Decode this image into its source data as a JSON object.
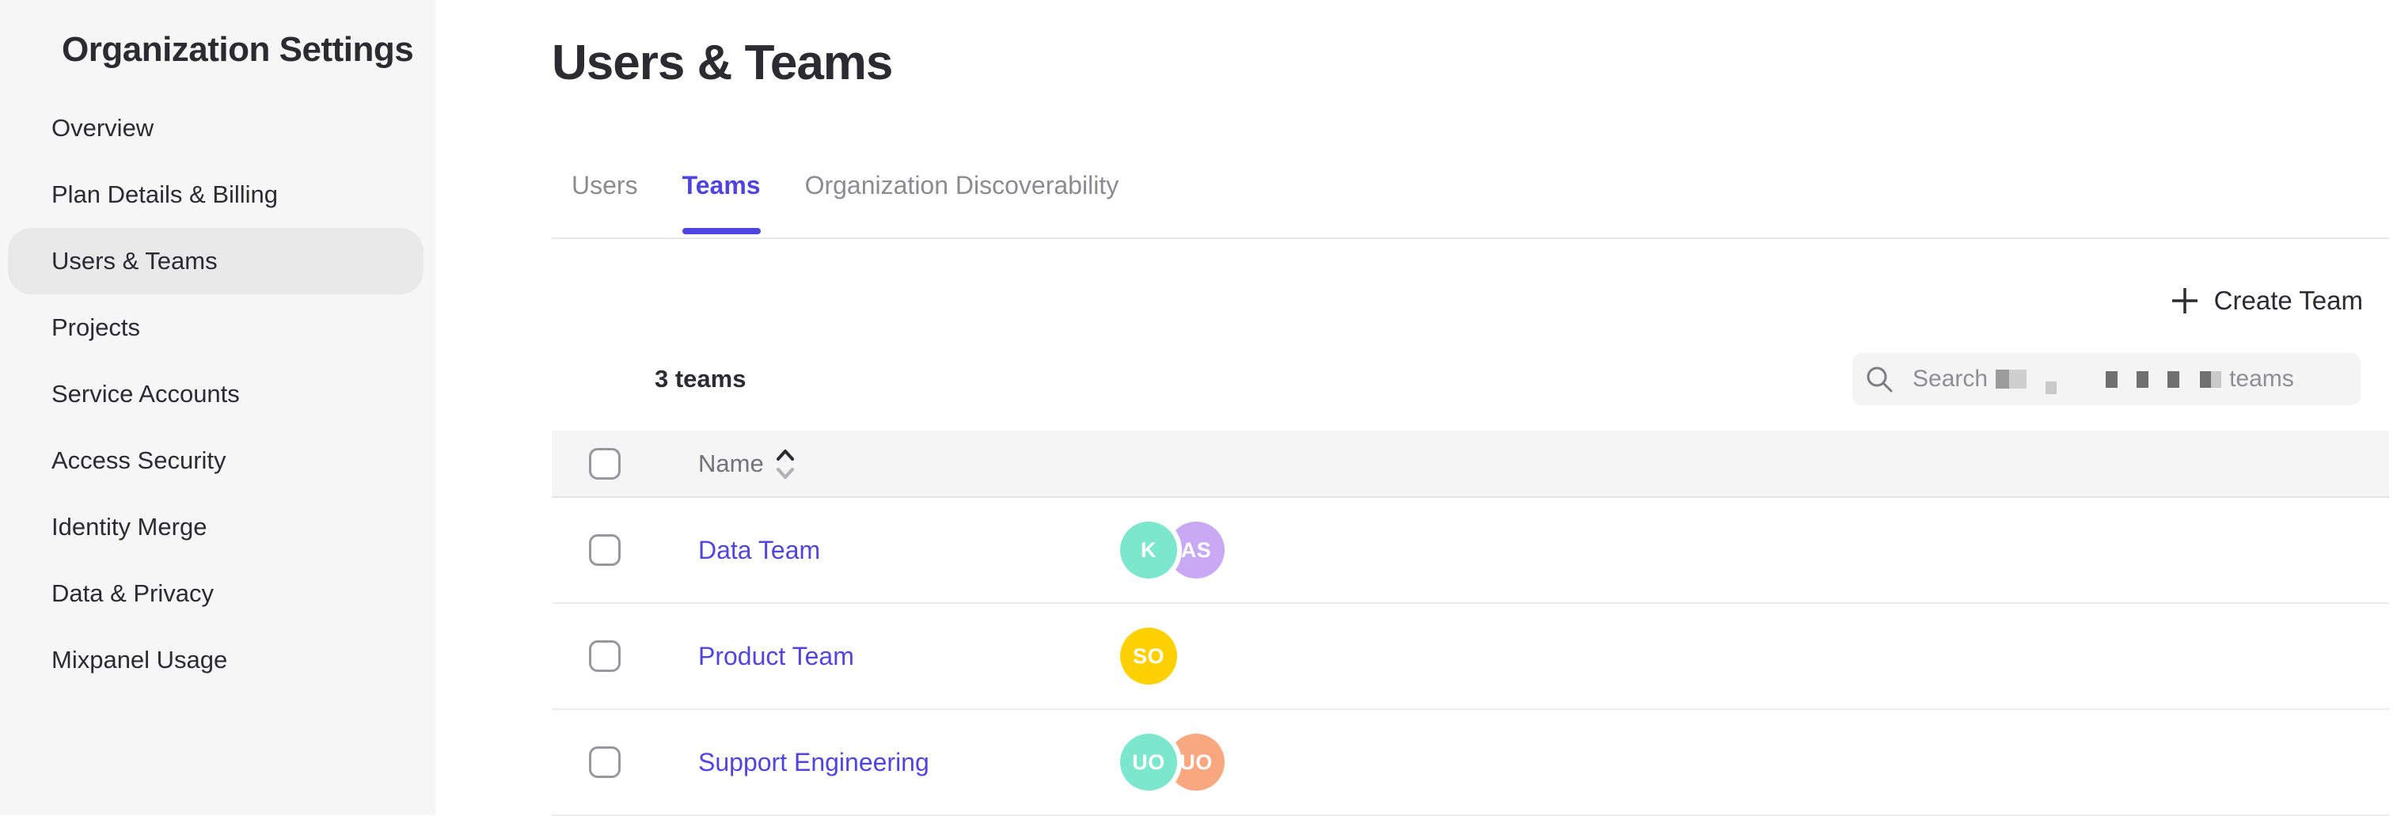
{
  "colors": {
    "accent": "#4f44e0",
    "link": "#5145e1",
    "sidebar_bg": "#f6f6f7",
    "active_pill_bg": "#e9e9ea",
    "table_header_bg": "#f5f5f6",
    "avatar_teal": "#7ce7cd",
    "avatar_purple": "#c9a9f4",
    "avatar_yellow": "#ffd100",
    "avatar_salmon": "#f8a77e"
  },
  "sidebar": {
    "title": "Organization Settings",
    "items": [
      {
        "label": "Overview",
        "active": false
      },
      {
        "label": "Plan Details & Billing",
        "active": false
      },
      {
        "label": "Users & Teams",
        "active": true
      },
      {
        "label": "Projects",
        "active": false
      },
      {
        "label": "Service Accounts",
        "active": false
      },
      {
        "label": "Access Security",
        "active": false
      },
      {
        "label": "Identity Merge",
        "active": false
      },
      {
        "label": "Data & Privacy",
        "active": false
      },
      {
        "label": "Mixpanel Usage",
        "active": false
      }
    ]
  },
  "header": {
    "title": "Users & Teams"
  },
  "tabs": [
    {
      "label": "Users",
      "active": false
    },
    {
      "label": "Teams",
      "active": true
    },
    {
      "label": "Organization Discoverability",
      "active": false
    }
  ],
  "toolbar": {
    "create_team_label": "Create Team"
  },
  "summary": {
    "teams_count": "3 teams"
  },
  "search": {
    "placeholder_prefix": "Search",
    "placeholder_suffix": "teams"
  },
  "table": {
    "name_column": "Name",
    "sort": "ascending",
    "rows": [
      {
        "name": "Data Team",
        "avatars": [
          {
            "initials": "K",
            "color": "#7ce7cd"
          },
          {
            "initials": "AS",
            "color": "#c9a9f4"
          }
        ]
      },
      {
        "name": "Product Team",
        "avatars": [
          {
            "initials": "SO",
            "color": "#ffd100"
          }
        ]
      },
      {
        "name": "Support Engineering",
        "avatars": [
          {
            "initials": "UO",
            "color": "#7ce7cd"
          },
          {
            "initials": "UO",
            "color": "#f8a77e"
          }
        ]
      }
    ]
  }
}
